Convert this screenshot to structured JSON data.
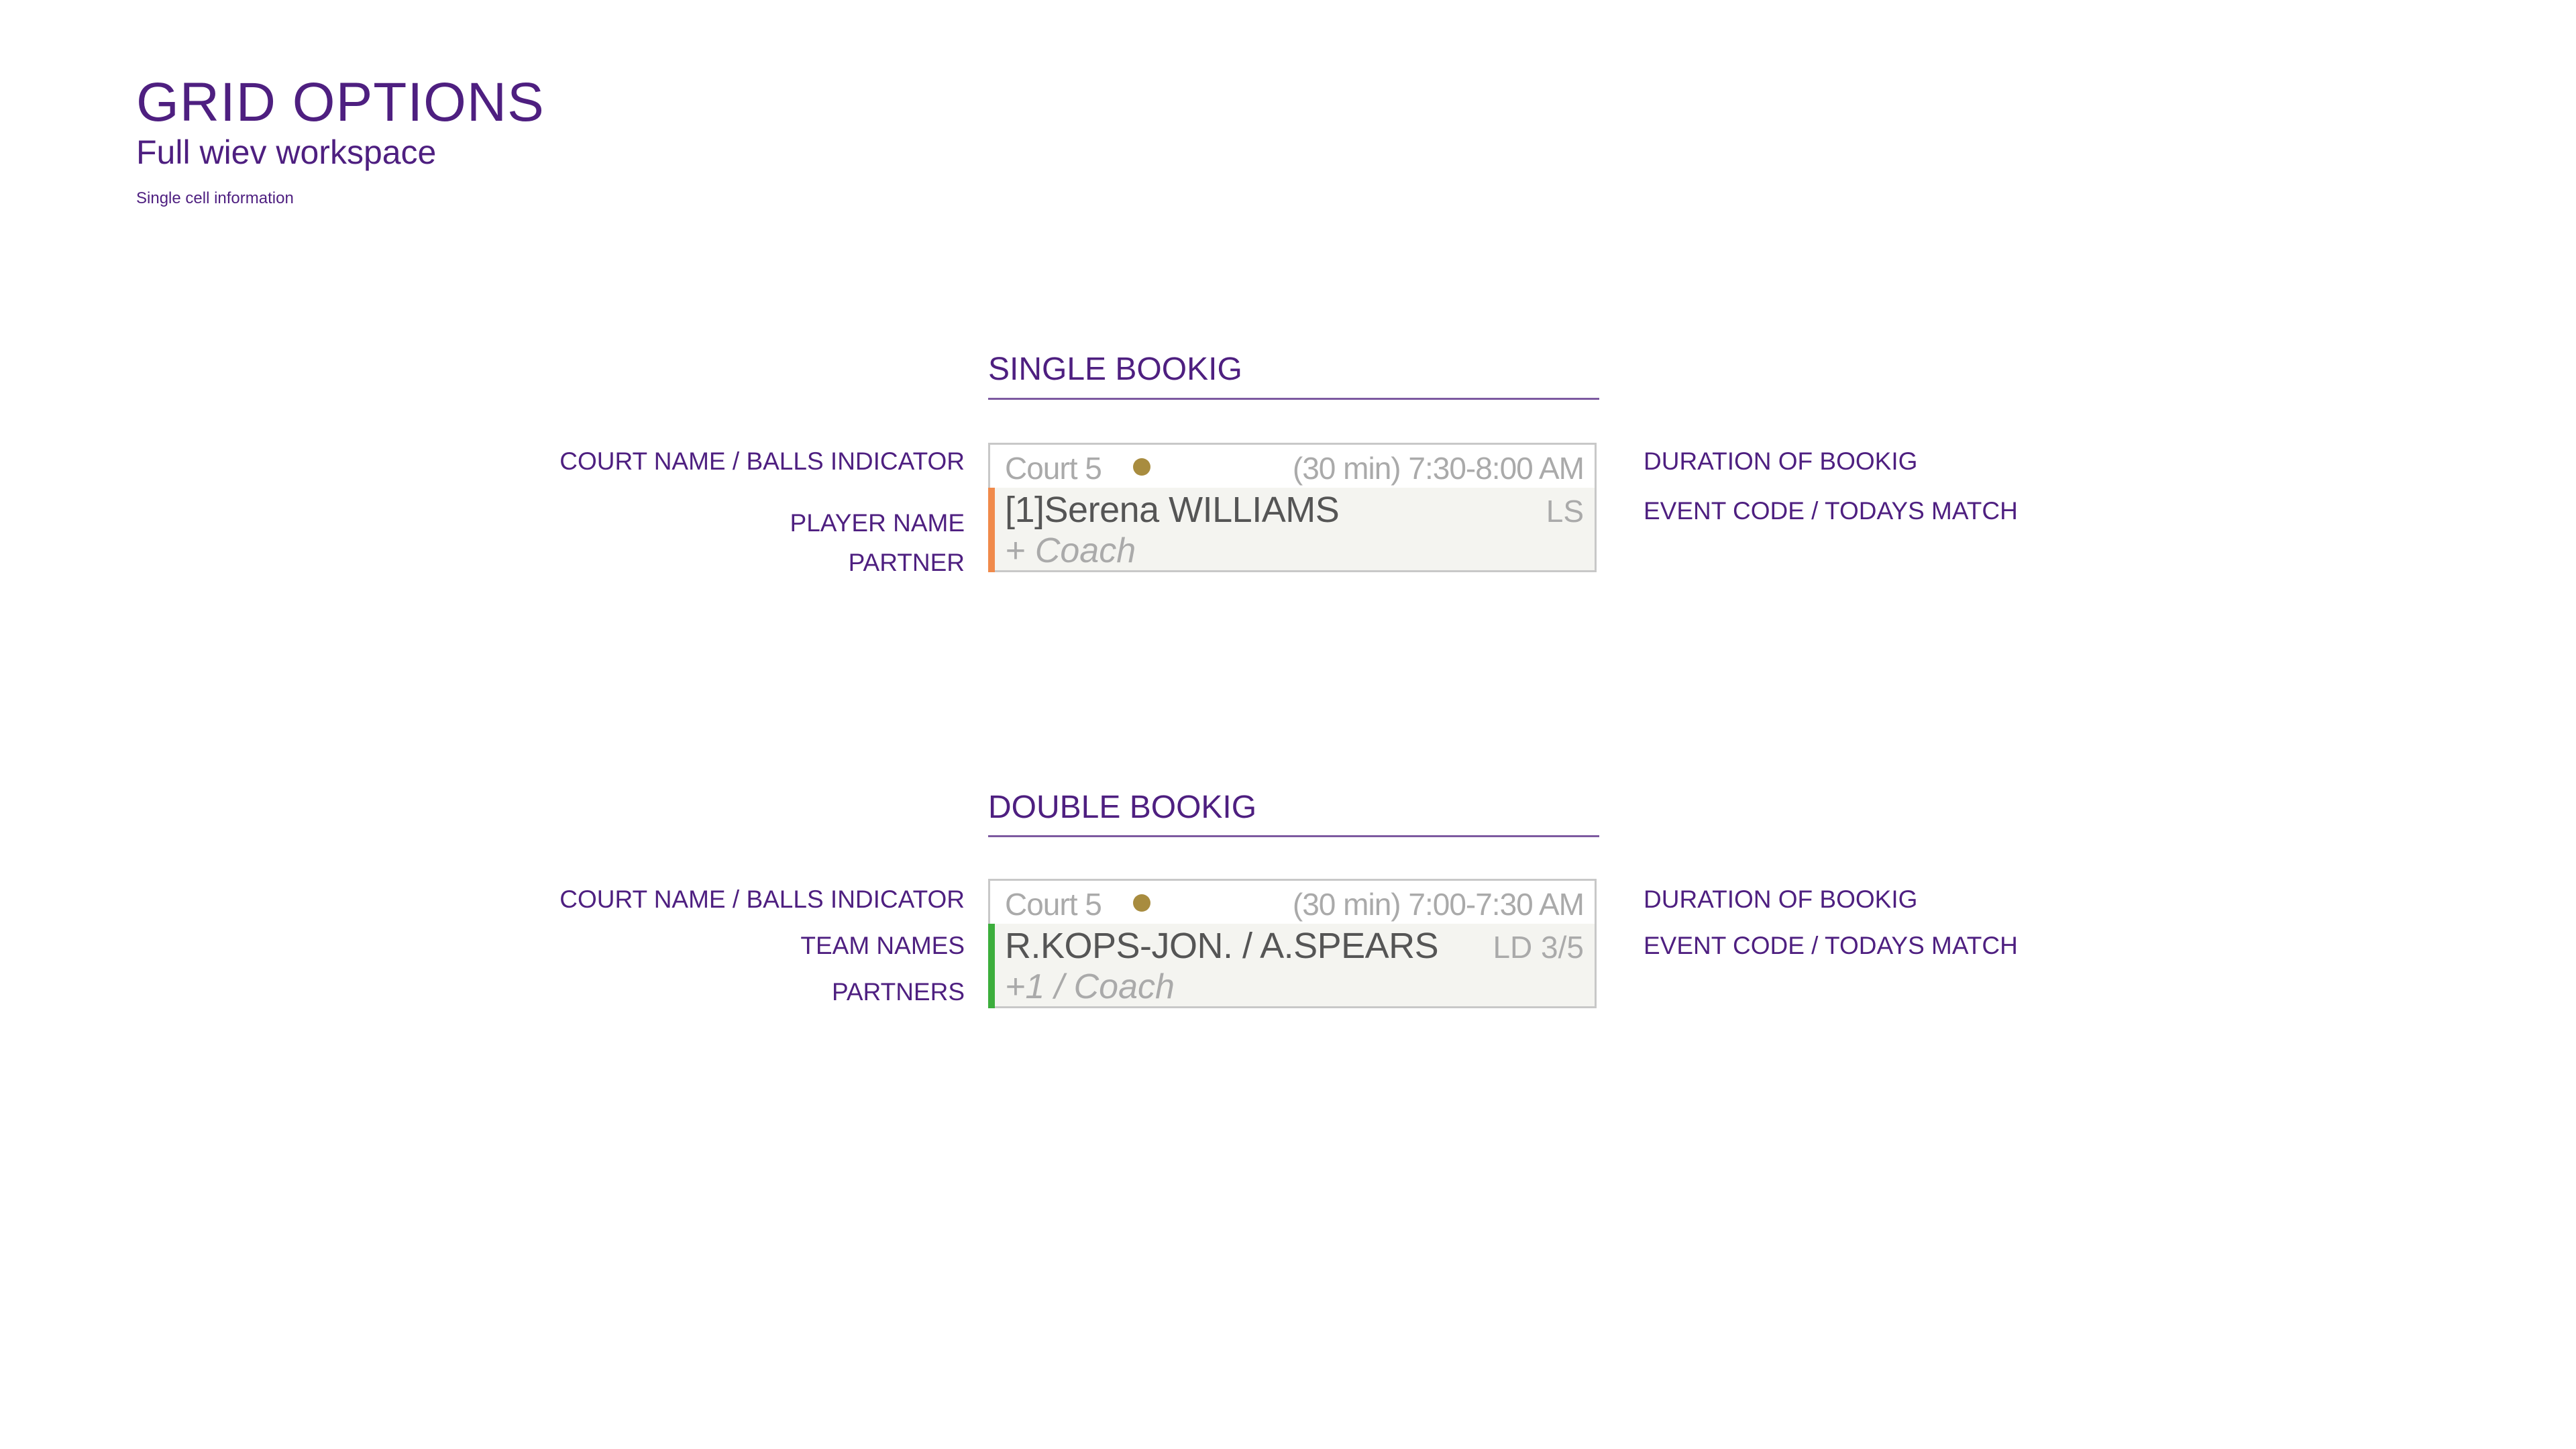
{
  "header": {
    "title": "GRID OPTIONS",
    "subtitle": "Full wiev workspace",
    "note": "Single cell information"
  },
  "colors": {
    "accent": "#4e1f80",
    "balls_indicator": "#a88c3f",
    "single_bar": "#f08a4b",
    "double_bar": "#3cae3c"
  },
  "single": {
    "heading": "SINGLE BOOKIG",
    "left_labels": [
      "COURT NAME / BALLS INDICATOR",
      "PLAYER NAME",
      "PARTNER"
    ],
    "right_labels": [
      "DURATION OF BOOKIG",
      "EVENT CODE / TODAYS MATCH"
    ],
    "cell": {
      "court": "Court 5",
      "balls_icon": "dot-icon",
      "time": "(30 min) 7:30-8:00 AM",
      "name": "[1]Serena WILLIAMS",
      "code": "LS",
      "partner": "+ Coach"
    }
  },
  "double": {
    "heading": "DOUBLE BOOKIG",
    "left_labels": [
      "COURT NAME / BALLS INDICATOR",
      "TEAM NAMES",
      "PARTNERS"
    ],
    "right_labels": [
      "DURATION OF BOOKIG",
      "EVENT CODE / TODAYS MATCH"
    ],
    "cell": {
      "court": "Court 5",
      "balls_icon": "dot-icon",
      "time": "(30 min) 7:00-7:30 AM",
      "name": "R.KOPS-JON. / A.SPEARS",
      "code": "LD 3/5",
      "partner": "+1 / Coach"
    }
  }
}
